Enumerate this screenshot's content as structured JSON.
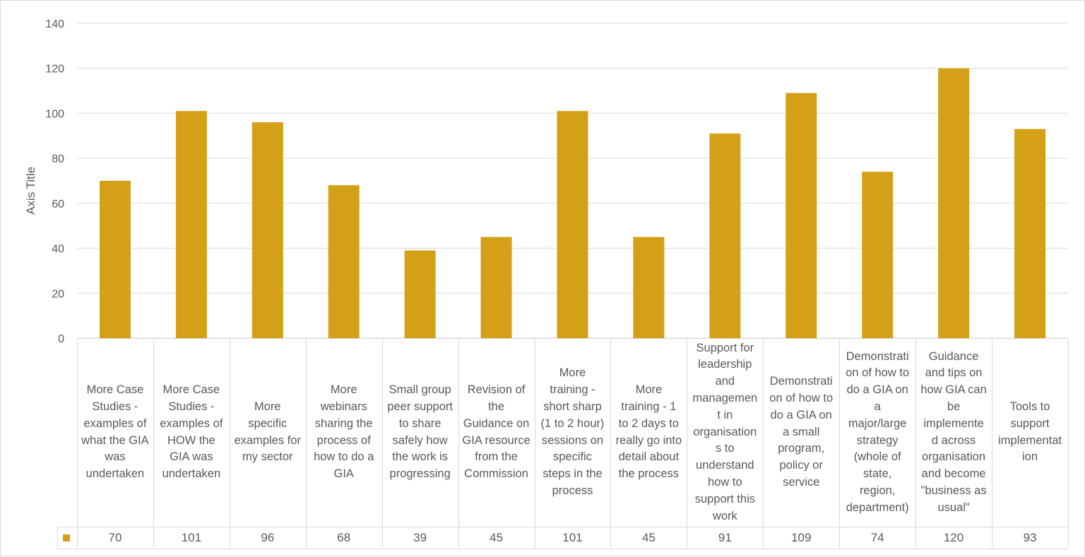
{
  "chart_data": {
    "type": "bar",
    "title": "",
    "xlabel": "",
    "ylabel": "Axis Title",
    "ylim": [
      0,
      140
    ],
    "yticks": [
      "0",
      "20",
      "40",
      "60",
      "80",
      "100",
      "120",
      "140"
    ],
    "grid": true,
    "legend": "data-table",
    "bar_color": "#d4a017",
    "categories": [
      "More Case Studies - examples of what the GIA was undertaken",
      "More Case Studies - examples of HOW the GIA was undertaken",
      "More specific examples for my sector",
      "More webinars sharing the process of how to do a GIA",
      "Small group peer support to share safely how the work is progressing",
      "Revision of the Guidance on GIA resource from the Commission",
      "More training - short sharp (1 to 2 hour) sessions on specific steps in the process",
      "More training - 1 to 2 days to really go into detail about the process",
      "Support for leadership and management in organisations to understand how to support this work",
      "Demonstration of how to do a GIA on a small program, policy or service",
      "Demonstration of how to do a GIA on a major/large strategy (whole of state, region, department)",
      "Guidance and tips on how GIA can be implemented across organisation and become \"business as usual\"",
      "Tools to support implementation"
    ],
    "category_labels_wrapped": [
      "More Case\nStudies -\nexamples of\nwhat the GIA\nwas\nundertaken",
      "More Case\nStudies -\nexamples of\nHOW the\nGIA was\nundertaken",
      "More\nspecific\nexamples for\nmy sector",
      "More\nwebinars\nsharing the\nprocess of\nhow to do a\nGIA",
      "Small group\npeer support\nto share\nsafely how\nthe work is\nprogressing",
      "Revision of\nthe\nGuidance on\nGIA resource\nfrom the\nCommission",
      "More\ntraining -\nshort sharp\n(1 to 2 hour)\nsessions on\nspecific\nsteps in the\nprocess",
      "More\ntraining - 1\nto 2 days to\nreally go into\ndetail about\nthe process",
      "Support for\nleadership\nand\nmanagemen\nt in\norganisation\ns to\nunderstand\nhow to\nsupport this\nwork",
      "Demonstrati\non of how to\ndo a GIA on\na small\nprogram,\npolicy or\nservice",
      "Demonstrati\non of how to\ndo a GIA on\na\nmajor/large\nstrategy\n(whole of\nstate,\nregion,\ndepartment)",
      "Guidance\nand tips on\nhow GIA can\nbe\nimplemente\nd across\norganisation\nand become\n\"business as\nusual\"",
      "Tools to\nsupport\nimplementat\nion"
    ],
    "values": [
      70,
      101,
      96,
      68,
      39,
      45,
      101,
      45,
      91,
      109,
      74,
      120,
      93
    ],
    "value_labels": [
      "70",
      "101",
      "96",
      "68",
      "39",
      "45",
      "101",
      "45",
      "91",
      "109",
      "74",
      "120",
      "93"
    ]
  }
}
